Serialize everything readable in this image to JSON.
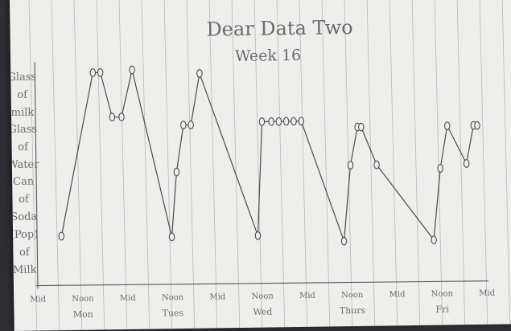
{
  "chart_data": {
    "type": "line",
    "title": "Dear Data Two",
    "subtitle": "Week 16",
    "y_categories": [
      "Glass of milk",
      "Glass of Water",
      "Can of Soda (Pop) of Milk"
    ],
    "y_tick_lines": [
      [
        "Glass",
        "of",
        "milk"
      ],
      [
        "Glass",
        "of",
        "Water"
      ],
      [
        "Can",
        "of",
        "Soda",
        "(Pop)",
        "of",
        "Milk"
      ]
    ],
    "x_ticks": [
      {
        "t": 0,
        "main": "Mid",
        "sub": ""
      },
      {
        "t": 12,
        "main": "Noon",
        "sub": "Mon"
      },
      {
        "t": 24,
        "main": "Mid",
        "sub": ""
      },
      {
        "t": 36,
        "main": "Noon",
        "sub": "Tues"
      },
      {
        "t": 48,
        "main": "Mid",
        "sub": ""
      },
      {
        "t": 60,
        "main": "Noon",
        "sub": "Wed"
      },
      {
        "t": 72,
        "main": "Mid",
        "sub": ""
      },
      {
        "t": 84,
        "main": "Noon",
        "sub": "Thurs"
      },
      {
        "t": 96,
        "main": "Mid",
        "sub": ""
      },
      {
        "t": 108,
        "main": "Noon",
        "sub": "Fri"
      },
      {
        "t": 120,
        "main": "Mid",
        "sub": ""
      }
    ],
    "xlim": [
      0,
      120
    ],
    "ylim": [
      0,
      100
    ],
    "series": [
      {
        "points": [
          {
            "t": 6.5,
            "v": 22
          },
          {
            "t": 15.5,
            "v": 95
          },
          {
            "t": 17.5,
            "v": 95
          },
          {
            "t": 20.5,
            "v": 75
          },
          {
            "t": 23,
            "v": 75
          },
          {
            "t": 26,
            "v": 96
          },
          {
            "t": 36,
            "v": 21
          },
          {
            "t": 37.5,
            "v": 50
          },
          {
            "t": 39.5,
            "v": 71
          },
          {
            "t": 41.5,
            "v": 71
          },
          {
            "t": 44,
            "v": 94
          },
          {
            "t": 59,
            "v": 21
          },
          {
            "t": 60.5,
            "v": 72
          },
          {
            "t": 63,
            "v": 72
          },
          {
            "t": 65,
            "v": 72
          },
          {
            "t": 67,
            "v": 72
          },
          {
            "t": 69,
            "v": 72
          },
          {
            "t": 71,
            "v": 72
          },
          {
            "t": 82,
            "v": 18
          },
          {
            "t": 84,
            "v": 52
          },
          {
            "t": 86,
            "v": 69
          },
          {
            "t": 87,
            "v": 69
          },
          {
            "t": 91,
            "v": 52
          },
          {
            "t": 106,
            "v": 18
          },
          {
            "t": 108,
            "v": 50
          },
          {
            "t": 110,
            "v": 69
          },
          {
            "t": 115,
            "v": 52
          },
          {
            "t": 117,
            "v": 69
          },
          {
            "t": 118,
            "v": 69
          }
        ]
      }
    ],
    "grid": false,
    "line_color": "#4a4a4a",
    "ruled_line_color": "#b8b8b8"
  }
}
